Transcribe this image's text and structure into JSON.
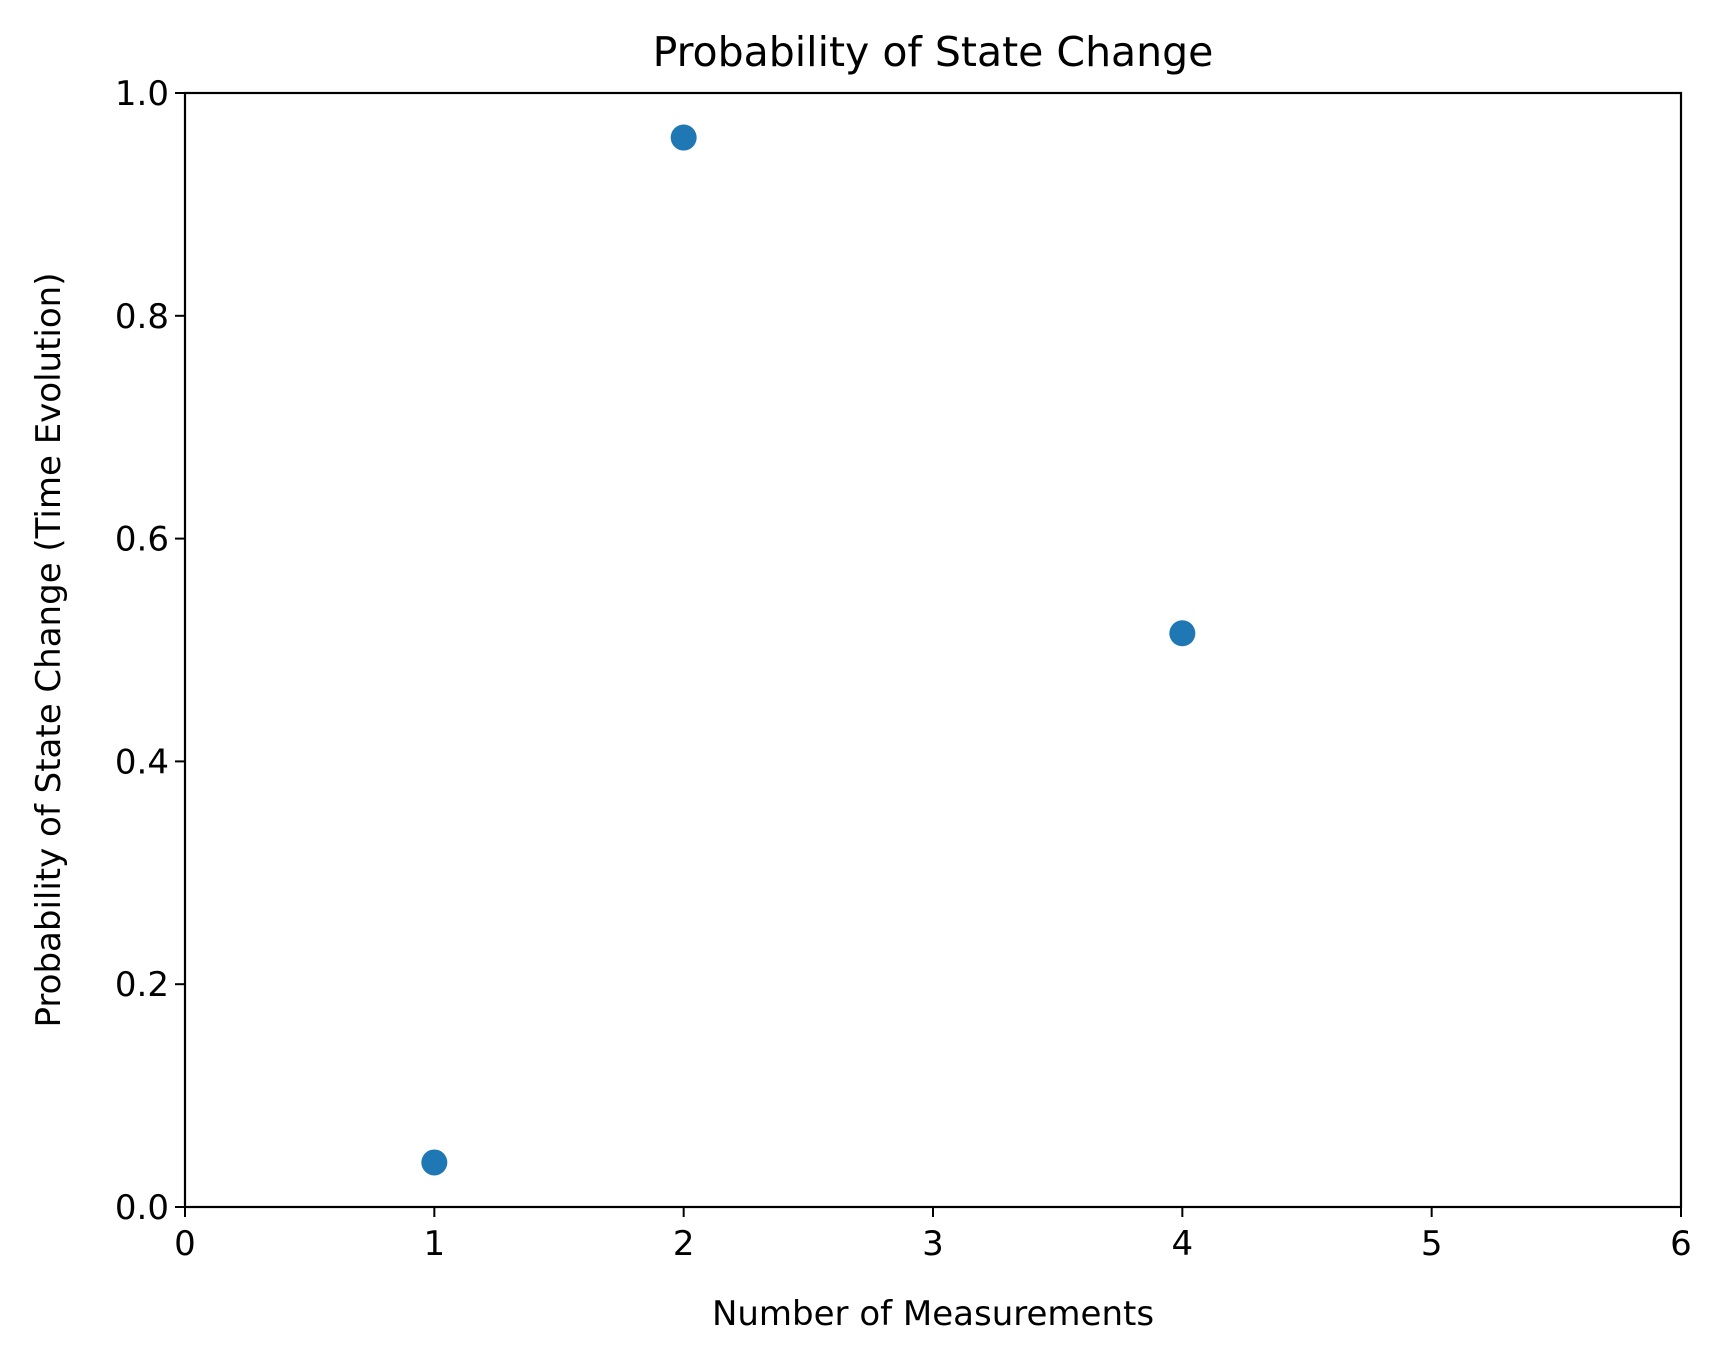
{
  "chart_data": {
    "type": "scatter",
    "title": "Probability of State Change",
    "xlabel": "Number of Measurements",
    "ylabel": "Probability of State Change (Time Evolution)",
    "xlim": [
      0,
      6
    ],
    "ylim": [
      0,
      1
    ],
    "xticks": [
      0,
      1,
      2,
      3,
      4,
      5,
      6
    ],
    "xtick_labels": [
      "0",
      "1",
      "2",
      "3",
      "4",
      "5",
      "6"
    ],
    "yticks": [
      0,
      0.2,
      0.4,
      0.6,
      0.8,
      1.0
    ],
    "ytick_labels": [
      "0.0",
      "0.2",
      "0.4",
      "0.6",
      "0.8",
      "1.0"
    ],
    "grid": false,
    "series": [
      {
        "color": "#1f77b4",
        "x": [
          1,
          2,
          4
        ],
        "y": [
          0.04,
          0.96,
          0.515
        ]
      }
    ]
  }
}
